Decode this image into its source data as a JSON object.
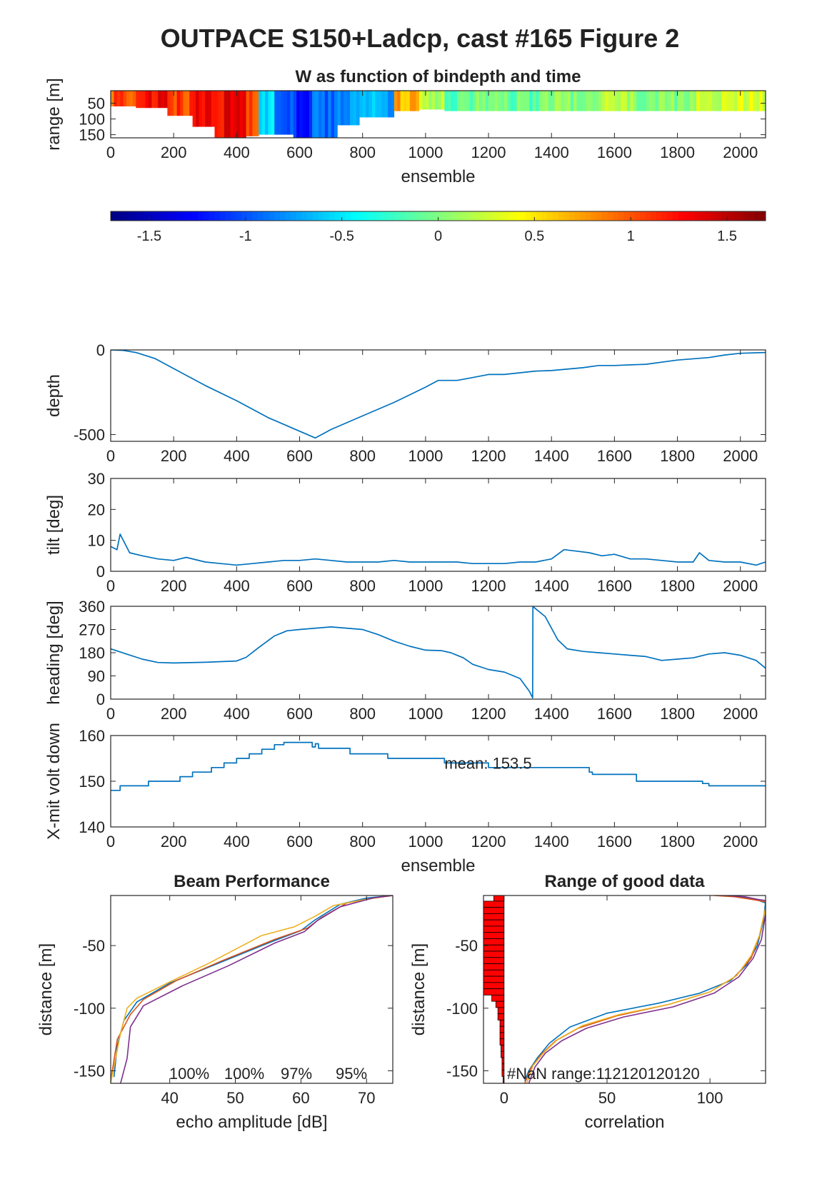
{
  "figure": {
    "title": "OUTPACE S150+Ladcp, cast #165 Figure 2"
  },
  "chart_data": [
    {
      "id": "w_heatmap",
      "type": "heatmap",
      "title": "W as function of bindepth and time",
      "xlabel": "ensemble",
      "ylabel": "range [m]",
      "xlim": [
        0,
        2080
      ],
      "ylim": [
        10,
        160
      ],
      "y_reversed": true,
      "xticks": [
        0,
        200,
        400,
        600,
        800,
        1000,
        1200,
        1400,
        1600,
        1800,
        2000
      ],
      "yticks": [
        50,
        100,
        150
      ],
      "colormap": "jet",
      "clim": [
        -1.7,
        1.7
      ],
      "colorbar_ticks": [
        -1.5,
        -1,
        -0.5,
        0,
        0.5,
        1,
        1.5
      ],
      "bands": [
        {
          "x": [
            0,
            80
          ],
          "w": 1.0,
          "depth": 60
        },
        {
          "x": [
            80,
            180
          ],
          "w": 1.25,
          "depth": 65
        },
        {
          "x": [
            180,
            260
          ],
          "w": 1.05,
          "depth": 90
        },
        {
          "x": [
            260,
            330
          ],
          "w": 1.25,
          "depth": 125
        },
        {
          "x": [
            330,
            430
          ],
          "w": 1.3,
          "depth": 160
        },
        {
          "x": [
            430,
            470
          ],
          "w": 1.05,
          "depth": 155
        },
        {
          "x": [
            470,
            520
          ],
          "w": -0.55,
          "depth": 150
        },
        {
          "x": [
            520,
            580
          ],
          "w": -1.0,
          "depth": 150
        },
        {
          "x": [
            580,
            640
          ],
          "w": -1.15,
          "depth": 160
        },
        {
          "x": [
            640,
            720
          ],
          "w": -0.95,
          "depth": 160
        },
        {
          "x": [
            720,
            790
          ],
          "w": -0.8,
          "depth": 120
        },
        {
          "x": [
            790,
            900
          ],
          "w": -0.7,
          "depth": 95
        },
        {
          "x": [
            900,
            980
          ],
          "w": 0.7,
          "depth": 75
        },
        {
          "x": [
            980,
            1060
          ],
          "w": 0.15,
          "depth": 70
        },
        {
          "x": [
            1060,
            1160
          ],
          "w": -0.15,
          "depth": 75
        },
        {
          "x": [
            1160,
            1260
          ],
          "w": 0.05,
          "depth": 75
        },
        {
          "x": [
            1260,
            1360
          ],
          "w": -0.1,
          "depth": 75
        },
        {
          "x": [
            1360,
            1460
          ],
          "w": 0.1,
          "depth": 75
        },
        {
          "x": [
            1460,
            1560
          ],
          "w": -0.05,
          "depth": 75
        },
        {
          "x": [
            1560,
            1660
          ],
          "w": 0.15,
          "depth": 75
        },
        {
          "x": [
            1660,
            1760
          ],
          "w": 0.05,
          "depth": 75
        },
        {
          "x": [
            1760,
            1860
          ],
          "w": 0.0,
          "depth": 75
        },
        {
          "x": [
            1860,
            1960
          ],
          "w": 0.2,
          "depth": 75
        },
        {
          "x": [
            1960,
            2080
          ],
          "w": 0.3,
          "depth": 75
        }
      ]
    },
    {
      "id": "depth",
      "type": "line",
      "ylabel": "depth",
      "xlim": [
        0,
        2080
      ],
      "ylim": [
        -540,
        0
      ],
      "xticks": [
        0,
        200,
        400,
        600,
        800,
        1000,
        1200,
        1400,
        1600,
        1800,
        2000
      ],
      "yticks": [
        -500,
        0
      ],
      "color": "#0072bd",
      "x": [
        0,
        40,
        80,
        140,
        200,
        300,
        400,
        500,
        600,
        650,
        700,
        800,
        900,
        1000,
        1040,
        1100,
        1130,
        1200,
        1250,
        1350,
        1400,
        1500,
        1550,
        1600,
        1700,
        1800,
        1900,
        1950,
        2000,
        2080
      ],
      "y": [
        0,
        -3,
        -15,
        -50,
        -110,
        -210,
        -300,
        -400,
        -480,
        -520,
        -470,
        -390,
        -310,
        -220,
        -180,
        -180,
        -170,
        -145,
        -145,
        -125,
        -122,
        -105,
        -92,
        -92,
        -85,
        -60,
        -45,
        -30,
        -20,
        -15
      ]
    },
    {
      "id": "tilt",
      "type": "line",
      "ylabel": "tilt [deg]",
      "xlim": [
        0,
        2080
      ],
      "ylim": [
        0,
        30
      ],
      "xticks": [
        0,
        200,
        400,
        600,
        800,
        1000,
        1200,
        1400,
        1600,
        1800,
        2000
      ],
      "yticks": [
        0,
        10,
        20,
        30
      ],
      "color": "#0072bd",
      "x": [
        0,
        20,
        30,
        60,
        100,
        150,
        200,
        240,
        300,
        350,
        400,
        450,
        500,
        550,
        600,
        650,
        700,
        750,
        800,
        850,
        900,
        950,
        1000,
        1050,
        1100,
        1150,
        1200,
        1250,
        1300,
        1350,
        1400,
        1440,
        1480,
        1520,
        1560,
        1600,
        1650,
        1700,
        1750,
        1800,
        1850,
        1870,
        1900,
        1950,
        2000,
        2050,
        2080
      ],
      "y": [
        8,
        7,
        12,
        6,
        5,
        4,
        3.5,
        4.5,
        3,
        2.5,
        2,
        2.5,
        3,
        3.5,
        3.5,
        4,
        3.5,
        3,
        3,
        3,
        3.5,
        3,
        3,
        3,
        3,
        2.5,
        2.5,
        2.5,
        3,
        3,
        4,
        7,
        6.5,
        6,
        5,
        5.5,
        4,
        4,
        3.5,
        3,
        3,
        6,
        3.5,
        3,
        3,
        2,
        3
      ]
    },
    {
      "id": "heading",
      "type": "line",
      "ylabel": "heading [deg]",
      "xlim": [
        0,
        2080
      ],
      "ylim": [
        0,
        360
      ],
      "xticks": [
        0,
        200,
        400,
        600,
        800,
        1000,
        1200,
        1400,
        1600,
        1800,
        2000
      ],
      "yticks": [
        0,
        90,
        180,
        270,
        360
      ],
      "color": "#0072bd",
      "x": [
        0,
        50,
        100,
        150,
        200,
        300,
        400,
        430,
        470,
        520,
        560,
        600,
        700,
        800,
        850,
        900,
        950,
        1000,
        1050,
        1080,
        1120,
        1150,
        1200,
        1250,
        1300,
        1330,
        1340,
        1341,
        1345,
        1380,
        1420,
        1450,
        1500,
        1550,
        1600,
        1650,
        1700,
        1750,
        1800,
        1850,
        1900,
        1950,
        2000,
        2050,
        2080
      ],
      "y": [
        195,
        175,
        155,
        142,
        140,
        143,
        148,
        162,
        200,
        245,
        265,
        270,
        280,
        270,
        250,
        225,
        205,
        190,
        188,
        180,
        160,
        135,
        115,
        105,
        80,
        30,
        5,
        360,
        355,
        320,
        230,
        195,
        185,
        180,
        175,
        170,
        165,
        150,
        155,
        160,
        175,
        180,
        170,
        150,
        120
      ]
    },
    {
      "id": "xmit_volt",
      "type": "line",
      "ylabel": "X-mit volt down",
      "xlabel": "ensemble",
      "xlim": [
        0,
        2080
      ],
      "ylim": [
        140,
        160
      ],
      "xticks": [
        0,
        200,
        400,
        600,
        800,
        1000,
        1200,
        1400,
        1600,
        1800,
        2000
      ],
      "yticks": [
        140,
        150,
        160
      ],
      "color": "#0072bd",
      "annotation": "mean: 153.5",
      "annotation_at": [
        1060,
        154
      ],
      "x": [
        0,
        30,
        30,
        120,
        120,
        220,
        220,
        260,
        260,
        320,
        320,
        360,
        360,
        400,
        400,
        440,
        440,
        480,
        480,
        520,
        520,
        550,
        550,
        640,
        640,
        650,
        650,
        660,
        660,
        760,
        760,
        880,
        880,
        930,
        930,
        1060,
        1060,
        1200,
        1200,
        1520,
        1520,
        1530,
        1530,
        1670,
        1670,
        1880,
        1880,
        1900,
        1900,
        2080
      ],
      "y": [
        148,
        148,
        149,
        149,
        150,
        150,
        151,
        151,
        152,
        152,
        153,
        153,
        154,
        154,
        155,
        155,
        156,
        156,
        157,
        157,
        158,
        158,
        158.5,
        158.5,
        157.5,
        157.5,
        158.2,
        158.2,
        157.2,
        157.2,
        156,
        156,
        155,
        155,
        155,
        155,
        154,
        154,
        153,
        153,
        152,
        152,
        151.5,
        151.5,
        150,
        150,
        149.5,
        149.5,
        149,
        149
      ]
    },
    {
      "id": "beam_performance",
      "type": "line",
      "title": "Beam Performance",
      "xlabel": "echo amplitude [dB]",
      "ylabel": "distance [m]",
      "xlim": [
        31,
        74
      ],
      "ylim": [
        -160,
        -10
      ],
      "xticks": [
        40,
        50,
        60,
        70
      ],
      "yticks": [
        -150,
        -100,
        -50
      ],
      "percent_labels": [
        "100%",
        "100%",
        "97%",
        "95%"
      ],
      "series": [
        {
          "color": "#0072bd",
          "x": [
            31.5,
            32,
            33,
            35,
            40,
            47,
            55,
            60,
            62,
            66,
            70,
            74
          ],
          "y": [
            -155,
            -130,
            -110,
            -95,
            -80,
            -65,
            -48,
            -38,
            -30,
            -17,
            -12,
            -10
          ]
        },
        {
          "color": "#d95319",
          "x": [
            31,
            32,
            34,
            36,
            41,
            48,
            56,
            61,
            63,
            67,
            71,
            74
          ],
          "y": [
            -158,
            -125,
            -105,
            -93,
            -78,
            -62,
            -45,
            -36,
            -28,
            -16,
            -12,
            -10
          ]
        },
        {
          "color": "#edb120",
          "x": [
            31,
            32.5,
            33.5,
            35,
            40,
            46,
            54,
            59,
            62,
            65,
            70,
            74
          ],
          "y": [
            -160,
            -120,
            -100,
            -92,
            -79,
            -64,
            -42,
            -35,
            -27,
            -18,
            -13,
            -10
          ]
        },
        {
          "color": "#7e2f8e",
          "x": [
            32.5,
            33.5,
            34,
            36,
            42,
            49,
            56,
            60.5,
            62.5,
            66,
            71,
            74
          ],
          "y": [
            -160,
            -140,
            -115,
            -98,
            -82,
            -66,
            -48,
            -39,
            -30,
            -19,
            -12,
            -10
          ]
        }
      ]
    },
    {
      "id": "range_good_data",
      "type": "line",
      "title": "Range of good data",
      "xlabel": "correlation",
      "ylabel": "distance [m]",
      "xlim": [
        -10,
        127
      ],
      "ylim": [
        -160,
        -10
      ],
      "xticks": [
        0,
        50,
        100
      ],
      "yticks": [
        -150,
        -100,
        -50
      ],
      "annotation": "#NaN range:112120120120",
      "bars": {
        "color": "#ff0000",
        "bin_height": 5,
        "centers": [
          -12,
          -17,
          -22,
          -27,
          -32,
          -37,
          -42,
          -47,
          -52,
          -57,
          -62,
          -67,
          -72,
          -77,
          -82,
          -87,
          -92,
          -97,
          -102,
          -107,
          -112,
          -117,
          -122,
          -127,
          -132,
          -137,
          -142,
          -147,
          -152,
          -157
        ],
        "values": [
          5,
          10,
          10,
          10,
          10,
          10,
          10,
          10,
          10,
          10,
          10,
          10,
          10,
          10,
          10,
          10,
          6,
          4,
          3,
          3,
          2,
          2,
          2,
          2,
          1.5,
          1.5,
          1,
          1,
          1,
          0.5
        ]
      },
      "series": [
        {
          "color": "#0072bd",
          "x": [
            10,
            12,
            16,
            22,
            32,
            50,
            75,
            95,
            110,
            118,
            123,
            126,
            127
          ],
          "y": [
            -158,
            -150,
            -140,
            -128,
            -115,
            -104,
            -96,
            -88,
            -78,
            -65,
            -50,
            -30,
            -15
          ]
        },
        {
          "color": "#d95319",
          "x": [
            10,
            13,
            18,
            25,
            36,
            55,
            80,
            100,
            112,
            120,
            124,
            127
          ],
          "y": [
            -160,
            -148,
            -137,
            -126,
            -116,
            -106,
            -97,
            -87,
            -75,
            -60,
            -42,
            -20
          ]
        },
        {
          "color": "#edb120",
          "x": [
            11,
            14,
            19,
            26,
            38,
            56,
            80,
            100,
            113,
            120,
            124,
            127
          ],
          "y": [
            -160,
            -146,
            -136,
            -125,
            -114,
            -105,
            -97,
            -87,
            -74,
            -58,
            -42,
            -20
          ]
        },
        {
          "color": "#7e2f8e",
          "x": [
            12,
            15,
            20,
            28,
            40,
            58,
            82,
            102,
            114,
            121,
            125,
            127
          ],
          "y": [
            -160,
            -147,
            -136,
            -126,
            -116,
            -107,
            -99,
            -88,
            -75,
            -60,
            -45,
            -25
          ]
        }
      ],
      "top_series": [
        {
          "color": "#0072bd",
          "x": [
            105,
            115,
            122,
            127
          ],
          "y": [
            -10,
            -11,
            -13,
            -16
          ]
        },
        {
          "color": "#d95319",
          "x": [
            102,
            112,
            120,
            127
          ],
          "y": [
            -10,
            -11,
            -13,
            -15
          ]
        },
        {
          "color": "#7e2f8e",
          "x": [
            108,
            117,
            123,
            127
          ],
          "y": [
            -10,
            -11,
            -13,
            -14
          ]
        }
      ]
    }
  ]
}
